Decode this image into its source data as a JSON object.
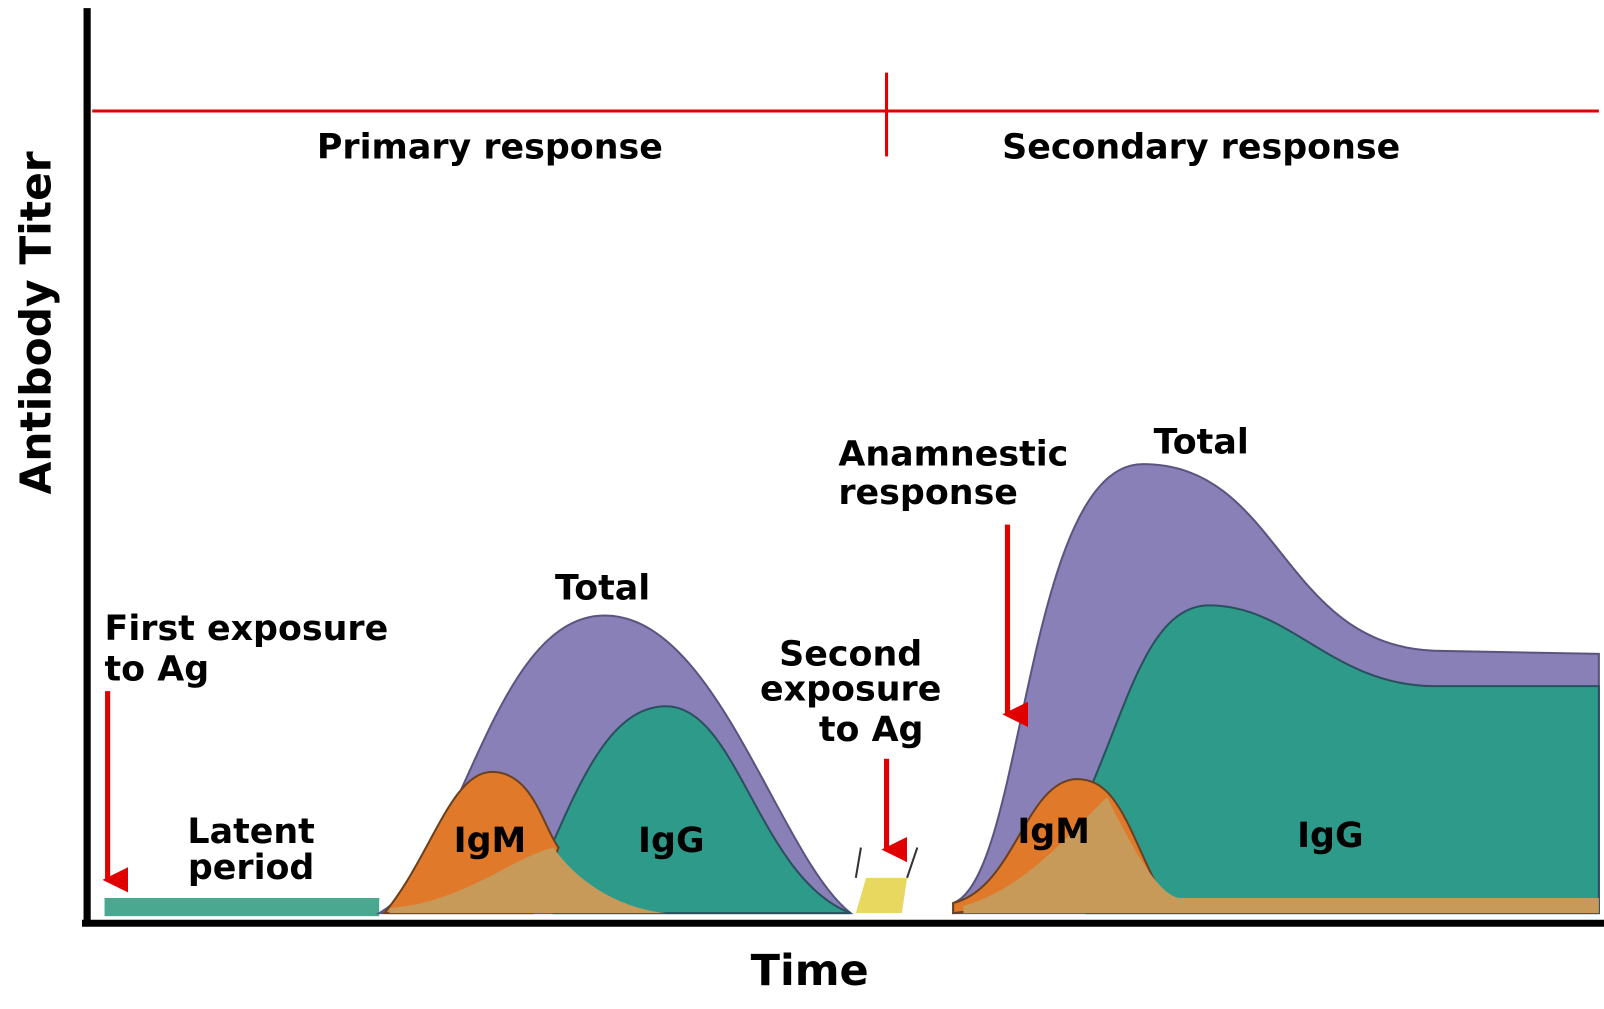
{
  "axes": {
    "y_label": "Antibody Titer",
    "x_label": "Time"
  },
  "phases": [
    {
      "label": "Primary response"
    },
    {
      "label": "Secondary response"
    }
  ],
  "annotations": {
    "first_exposure": [
      "First exposure",
      "to Ag"
    ],
    "latent_period": [
      "Latent",
      "period"
    ],
    "second_exposure": [
      "Second",
      "exposure",
      "to Ag"
    ],
    "anamnestic": [
      "Anamnestic",
      "response"
    ]
  },
  "primary": {
    "total": "Total",
    "igm": "IgM",
    "igg": "IgG"
  },
  "secondary": {
    "total": "Total",
    "igm": "IgM",
    "igg": "IgG"
  }
}
